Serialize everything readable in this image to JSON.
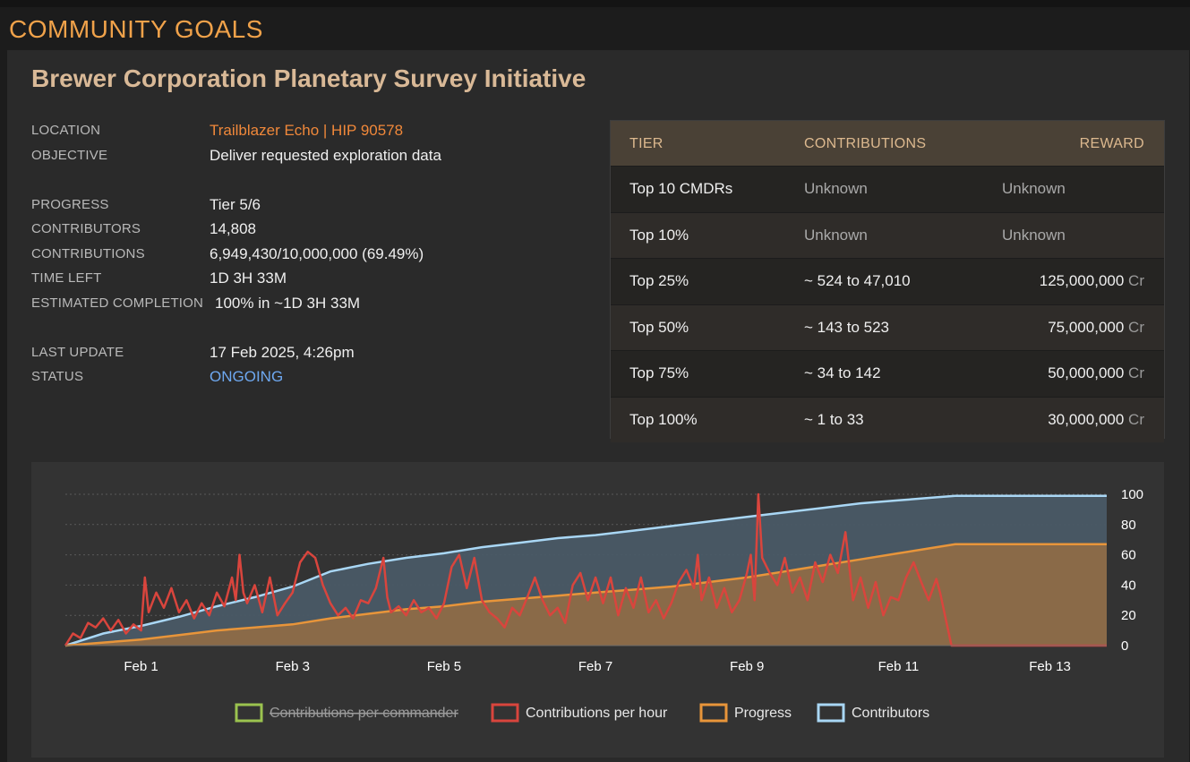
{
  "page": {
    "title": "COMMUNITY GOALS"
  },
  "goal": {
    "title": "Brewer Corporation Planetary Survey Initiative",
    "labels": {
      "location": "LOCATION",
      "objective": "OBJECTIVE",
      "progress": "PROGRESS",
      "contributors": "CONTRIBUTORS",
      "contributions": "CONTRIBUTIONS",
      "time_left": "TIME LEFT",
      "estimated_completion": "ESTIMATED COMPLETION",
      "last_update": "LAST UPDATE",
      "status": "STATUS"
    },
    "values": {
      "location": "Trailblazer Echo | HIP 90578",
      "objective": "Deliver requested exploration data",
      "progress": "Tier 5/6",
      "contributors": "14,808",
      "contributions": "6,949,430/10,000,000 (69.49%)",
      "time_left": "1D 3H 33M",
      "estimated_completion": "100% in ~1D 3H 33M",
      "last_update": "17 Feb 2025, 4:26pm",
      "status": "ONGOING"
    },
    "colors": {
      "location": "#f0883a",
      "status": "#6ea8f0",
      "title": "#d9b997",
      "page_title": "#f0a24a"
    }
  },
  "tiers": {
    "headers": {
      "tier": "TIER",
      "contributions": "CONTRIBUTIONS",
      "reward": "REWARD"
    },
    "currency": "Cr",
    "rows": [
      {
        "tier": "Top 10 CMDRs",
        "contributions": "Unknown",
        "reward": "Unknown",
        "unknown": true
      },
      {
        "tier": "Top 10%",
        "contributions": "Unknown",
        "reward": "Unknown",
        "unknown": true
      },
      {
        "tier": "Top 25%",
        "contributions": "~ 524 to 47,010",
        "reward": "125,000,000",
        "unknown": false
      },
      {
        "tier": "Top 50%",
        "contributions": "~ 143 to 523",
        "reward": "75,000,000",
        "unknown": false
      },
      {
        "tier": "Top 75%",
        "contributions": "~ 34 to 142",
        "reward": "50,000,000",
        "unknown": false
      },
      {
        "tier": "Top 100%",
        "contributions": "~ 1 to 33",
        "reward": "30,000,000",
        "unknown": false
      }
    ]
  },
  "chart_data": {
    "type": "line",
    "title": "",
    "xlabel": "",
    "ylabel": "",
    "x_domain_days": [
      0,
      13.75
    ],
    "x_ticks": [
      {
        "day": 1,
        "label": "Feb 1"
      },
      {
        "day": 3,
        "label": "Feb 3"
      },
      {
        "day": 5,
        "label": "Feb 5"
      },
      {
        "day": 7,
        "label": "Feb 7"
      },
      {
        "day": 9,
        "label": "Feb 9"
      },
      {
        "day": 11,
        "label": "Feb 11"
      },
      {
        "day": 13,
        "label": "Feb 13"
      }
    ],
    "ylim": [
      0,
      100
    ],
    "y_ticks": [
      0,
      20,
      40,
      60,
      80,
      100
    ],
    "y_axis_side": "right",
    "grid": true,
    "legend_position": "bottom",
    "series": [
      {
        "name": "Contributions per commander",
        "color": "#9bc34f",
        "hidden": true,
        "points": []
      },
      {
        "name": "Contributions per hour",
        "color": "#d9453d",
        "hidden": false,
        "points": [
          [
            0,
            0
          ],
          [
            0.1,
            8
          ],
          [
            0.2,
            5
          ],
          [
            0.3,
            15
          ],
          [
            0.4,
            12
          ],
          [
            0.5,
            18
          ],
          [
            0.6,
            10
          ],
          [
            0.7,
            17
          ],
          [
            0.8,
            8
          ],
          [
            0.9,
            14
          ],
          [
            1.0,
            10
          ],
          [
            1.05,
            45
          ],
          [
            1.1,
            22
          ],
          [
            1.2,
            35
          ],
          [
            1.3,
            25
          ],
          [
            1.4,
            38
          ],
          [
            1.5,
            22
          ],
          [
            1.6,
            30
          ],
          [
            1.7,
            18
          ],
          [
            1.8,
            28
          ],
          [
            1.9,
            20
          ],
          [
            2.0,
            35
          ],
          [
            2.1,
            26
          ],
          [
            2.2,
            45
          ],
          [
            2.25,
            30
          ],
          [
            2.3,
            60
          ],
          [
            2.35,
            35
          ],
          [
            2.4,
            28
          ],
          [
            2.5,
            40
          ],
          [
            2.6,
            22
          ],
          [
            2.7,
            45
          ],
          [
            2.8,
            20
          ],
          [
            2.9,
            28
          ],
          [
            3.0,
            35
          ],
          [
            3.1,
            55
          ],
          [
            3.2,
            62
          ],
          [
            3.3,
            58
          ],
          [
            3.4,
            40
          ],
          [
            3.5,
            28
          ],
          [
            3.6,
            20
          ],
          [
            3.7,
            25
          ],
          [
            3.8,
            18
          ],
          [
            3.9,
            30
          ],
          [
            4.0,
            28
          ],
          [
            4.1,
            38
          ],
          [
            4.2,
            58
          ],
          [
            4.25,
            32
          ],
          [
            4.3,
            22
          ],
          [
            4.4,
            26
          ],
          [
            4.5,
            20
          ],
          [
            4.6,
            30
          ],
          [
            4.7,
            22
          ],
          [
            4.8,
            25
          ],
          [
            4.9,
            18
          ],
          [
            5.0,
            28
          ],
          [
            5.1,
            52
          ],
          [
            5.2,
            60
          ],
          [
            5.3,
            38
          ],
          [
            5.4,
            58
          ],
          [
            5.5,
            30
          ],
          [
            5.6,
            22
          ],
          [
            5.7,
            18
          ],
          [
            5.8,
            12
          ],
          [
            5.9,
            25
          ],
          [
            6.0,
            20
          ],
          [
            6.1,
            32
          ],
          [
            6.2,
            45
          ],
          [
            6.3,
            30
          ],
          [
            6.4,
            20
          ],
          [
            6.5,
            25
          ],
          [
            6.6,
            15
          ],
          [
            6.7,
            40
          ],
          [
            6.8,
            48
          ],
          [
            6.9,
            30
          ],
          [
            7.0,
            45
          ],
          [
            7.1,
            28
          ],
          [
            7.2,
            45
          ],
          [
            7.3,
            20
          ],
          [
            7.4,
            38
          ],
          [
            7.5,
            25
          ],
          [
            7.6,
            45
          ],
          [
            7.7,
            22
          ],
          [
            7.8,
            30
          ],
          [
            7.9,
            18
          ],
          [
            8.0,
            28
          ],
          [
            8.1,
            42
          ],
          [
            8.2,
            50
          ],
          [
            8.3,
            38
          ],
          [
            8.35,
            60
          ],
          [
            8.4,
            30
          ],
          [
            8.5,
            45
          ],
          [
            8.6,
            25
          ],
          [
            8.7,
            38
          ],
          [
            8.8,
            22
          ],
          [
            8.9,
            30
          ],
          [
            9.0,
            48
          ],
          [
            9.05,
            60
          ],
          [
            9.1,
            30
          ],
          [
            9.15,
            100
          ],
          [
            9.2,
            58
          ],
          [
            9.3,
            48
          ],
          [
            9.4,
            40
          ],
          [
            9.5,
            58
          ],
          [
            9.6,
            35
          ],
          [
            9.7,
            45
          ],
          [
            9.8,
            30
          ],
          [
            9.9,
            55
          ],
          [
            10.0,
            42
          ],
          [
            10.1,
            60
          ],
          [
            10.2,
            48
          ],
          [
            10.3,
            75
          ],
          [
            10.4,
            30
          ],
          [
            10.5,
            45
          ],
          [
            10.6,
            25
          ],
          [
            10.7,
            42
          ],
          [
            10.8,
            20
          ],
          [
            10.9,
            32
          ],
          [
            11.0,
            30
          ],
          [
            11.1,
            45
          ],
          [
            11.2,
            55
          ],
          [
            11.3,
            42
          ],
          [
            11.4,
            30
          ],
          [
            11.5,
            44
          ],
          [
            11.55,
            35
          ],
          [
            11.7,
            0
          ],
          [
            12.0,
            0
          ],
          [
            13.0,
            0
          ],
          [
            13.75,
            0
          ]
        ]
      },
      {
        "name": "Progress",
        "color": "#e8953a",
        "hidden": false,
        "points": [
          [
            0,
            0
          ],
          [
            0.5,
            2
          ],
          [
            1,
            4
          ],
          [
            1.5,
            7
          ],
          [
            2,
            10
          ],
          [
            2.5,
            12
          ],
          [
            3,
            14
          ],
          [
            3.5,
            18
          ],
          [
            4,
            21
          ],
          [
            4.5,
            24
          ],
          [
            5,
            26
          ],
          [
            5.5,
            29
          ],
          [
            6,
            31
          ],
          [
            6.5,
            33
          ],
          [
            7,
            35
          ],
          [
            7.5,
            37
          ],
          [
            8,
            39
          ],
          [
            8.5,
            42
          ],
          [
            9,
            45
          ],
          [
            9.5,
            49
          ],
          [
            10,
            53
          ],
          [
            10.5,
            57
          ],
          [
            11,
            61
          ],
          [
            11.5,
            65
          ],
          [
            11.75,
            67
          ],
          [
            12,
            67
          ],
          [
            12.5,
            67
          ],
          [
            13,
            67
          ],
          [
            13.75,
            67
          ]
        ]
      },
      {
        "name": "Contributors",
        "color": "#a9d7f5",
        "hidden": false,
        "points": [
          [
            0,
            0
          ],
          [
            0.5,
            8
          ],
          [
            1,
            13
          ],
          [
            1.5,
            19
          ],
          [
            2,
            26
          ],
          [
            2.5,
            32
          ],
          [
            3,
            39
          ],
          [
            3.5,
            49
          ],
          [
            4,
            54
          ],
          [
            4.5,
            58
          ],
          [
            5,
            61
          ],
          [
            5.5,
            65
          ],
          [
            6,
            68
          ],
          [
            6.5,
            71
          ],
          [
            7,
            73
          ],
          [
            7.5,
            76
          ],
          [
            8,
            79
          ],
          [
            8.5,
            82
          ],
          [
            9,
            85
          ],
          [
            9.5,
            88
          ],
          [
            10,
            91
          ],
          [
            10.5,
            94
          ],
          [
            11,
            96
          ],
          [
            11.5,
            98
          ],
          [
            11.75,
            99
          ],
          [
            12,
            99
          ],
          [
            12.5,
            99
          ],
          [
            13,
            99
          ],
          [
            13.75,
            99
          ]
        ]
      }
    ]
  }
}
